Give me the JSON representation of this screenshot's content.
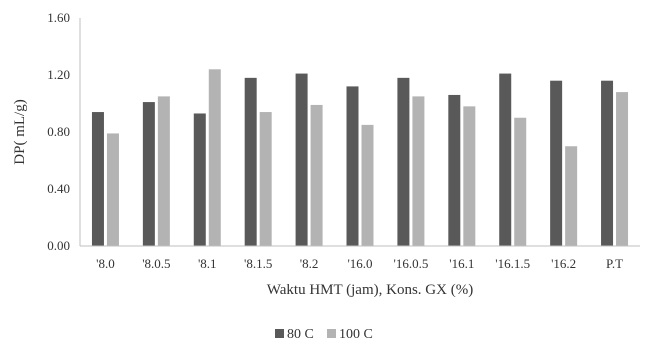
{
  "chart_data": {
    "type": "bar",
    "title": "",
    "xlabel": "Waktu HMT (jam), Kons. GX (%)",
    "ylabel": "DP( mL/g)",
    "ylim": [
      0,
      1.6
    ],
    "yticks": [
      "0.00",
      "0.40",
      "0.80",
      "1.20",
      "1.60"
    ],
    "categories": [
      "'8.0",
      "'8.0.5",
      "'8.1",
      "'8.1.5",
      "'8.2",
      "'16.0",
      "'16.0.5",
      "'16.1",
      "'16.1.5",
      "'16.2",
      "P.T"
    ],
    "series": [
      {
        "name": "80 C",
        "color": "#595959",
        "values": [
          0.94,
          1.01,
          0.93,
          1.18,
          1.21,
          1.12,
          1.18,
          1.06,
          1.21,
          1.16,
          1.16
        ]
      },
      {
        "name": "100 C",
        "color": "#b3b3b3",
        "values": [
          0.79,
          1.05,
          1.24,
          0.94,
          0.99,
          0.85,
          1.05,
          0.98,
          0.9,
          0.7,
          1.08
        ]
      }
    ],
    "grid": false,
    "legend_position": "bottom-center"
  }
}
